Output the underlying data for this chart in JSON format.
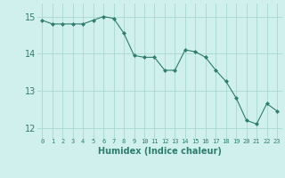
{
  "x": [
    0,
    1,
    2,
    3,
    4,
    5,
    6,
    7,
    8,
    9,
    10,
    11,
    12,
    13,
    14,
    15,
    16,
    17,
    18,
    19,
    20,
    21,
    22,
    23
  ],
  "y": [
    14.9,
    14.8,
    14.8,
    14.8,
    14.8,
    14.9,
    15.0,
    14.95,
    14.55,
    13.95,
    13.9,
    13.9,
    13.55,
    13.55,
    14.1,
    14.05,
    13.9,
    13.55,
    13.25,
    12.8,
    12.2,
    12.1,
    12.65,
    12.45
  ],
  "line_color": "#2e7d6e",
  "marker": "D",
  "marker_size": 2,
  "bg_color": "#cff0ec",
  "grid_color": "#a8d8d0",
  "xlabel": "Humidex (Indice chaleur)",
  "xlabel_fontsize": 7,
  "ytick_fontsize": 7,
  "xtick_fontsize": 5,
  "yticks": [
    12,
    13,
    14,
    15
  ],
  "xticks": [
    0,
    1,
    2,
    3,
    4,
    5,
    6,
    7,
    8,
    9,
    10,
    11,
    12,
    13,
    14,
    15,
    16,
    17,
    18,
    19,
    20,
    21,
    22,
    23
  ],
  "ylim": [
    11.7,
    15.35
  ],
  "xlim": [
    -0.5,
    23.5
  ]
}
